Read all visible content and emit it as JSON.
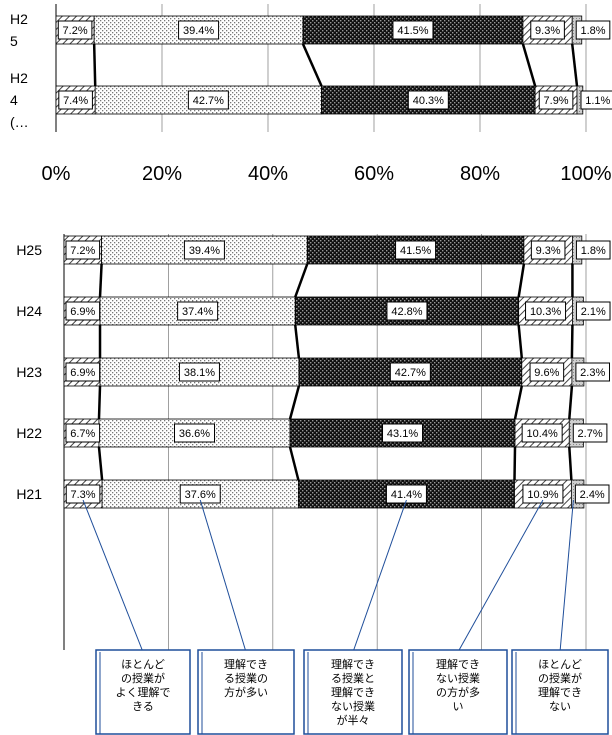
{
  "chart_data": [
    {
      "type": "bar",
      "stacked": true,
      "orientation": "horizontal",
      "xlim": [
        0,
        100
      ],
      "x_tick_labels": [
        "0%",
        "20%",
        "40%",
        "60%",
        "80%",
        "100%"
      ],
      "categories": [
        "H2\n5",
        "H2\n4\n(…"
      ],
      "series": [
        {
          "values": [
            7.2,
            7.4
          ],
          "labels": [
            "7.2%",
            "7.4%"
          ],
          "pattern": "hatch"
        },
        {
          "values": [
            39.4,
            42.7
          ],
          "labels": [
            "39.4%",
            "42.7%"
          ],
          "pattern": "light-dots"
        },
        {
          "values": [
            41.5,
            40.3
          ],
          "labels": [
            "41.5%",
            "40.3%"
          ],
          "pattern": "dark-dots"
        },
        {
          "values": [
            9.3,
            7.9
          ],
          "labels": [
            "9.3%",
            "7.9%"
          ],
          "pattern": "hatch"
        },
        {
          "values": [
            1.8,
            1.1
          ],
          "labels": [
            "1.8%",
            "1.1%"
          ],
          "pattern": "gray"
        }
      ]
    },
    {
      "type": "bar",
      "stacked": true,
      "orientation": "horizontal",
      "xlim": [
        0,
        100
      ],
      "categories": [
        "H25",
        "H24",
        "H23",
        "H22",
        "H21"
      ],
      "series": [
        {
          "name": "ほとんどの授業がよく理解できる",
          "values": [
            7.2,
            6.9,
            6.9,
            6.7,
            7.3
          ],
          "labels": [
            "7.2%",
            "6.9%",
            "6.9%",
            "6.7%",
            "7.3%"
          ],
          "pattern": "hatch"
        },
        {
          "name": "理解できる授業の方が多い",
          "values": [
            39.4,
            37.4,
            38.1,
            36.6,
            37.6
          ],
          "labels": [
            "39.4%",
            "37.4%",
            "38.1%",
            "36.6%",
            "37.6%"
          ],
          "pattern": "light-dots"
        },
        {
          "name": "理解できる授業と理解できない授業が半々",
          "values": [
            41.5,
            42.8,
            42.7,
            43.1,
            41.4
          ],
          "labels": [
            "41.5%",
            "42.8%",
            "42.7%",
            "43.1%",
            "41.4%"
          ],
          "pattern": "dark-dots"
        },
        {
          "name": "理解できない授業の方が多い",
          "values": [
            9.3,
            10.3,
            9.6,
            10.4,
            10.9
          ],
          "labels": [
            "9.3%",
            "10.3%",
            "9.6%",
            "10.4%",
            "10.9%"
          ],
          "pattern": "hatch"
        },
        {
          "name": "ほとんどの授業が理解できない",
          "values": [
            1.8,
            2.1,
            2.3,
            2.7,
            2.4
          ],
          "labels": [
            "1.8%",
            "2.1%",
            "2.3%",
            "2.7%",
            "2.4%"
          ],
          "pattern": "gray"
        }
      ],
      "callouts": [
        {
          "lines": [
            "ほとんど",
            "の授業が",
            "よく理解で",
            "きる"
          ]
        },
        {
          "lines": [
            "理解でき",
            "る授業の",
            "方が多い"
          ]
        },
        {
          "lines": [
            "理解でき",
            "る授業と",
            "理解でき",
            "ない授業",
            "が半々"
          ]
        },
        {
          "lines": [
            "理解でき",
            "ない授業",
            "の方が多",
            "い"
          ]
        },
        {
          "lines": [
            "ほとんど",
            "の授業が",
            "理解でき",
            "ない"
          ]
        }
      ]
    }
  ]
}
